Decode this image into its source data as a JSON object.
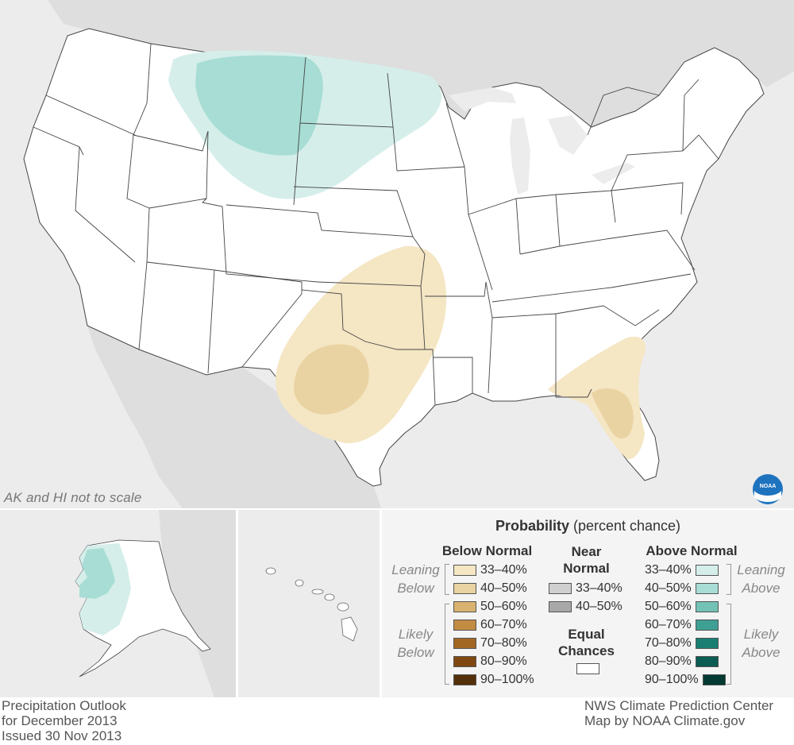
{
  "map": {
    "scale_note": "AK and HI not to scale",
    "colors": {
      "ocean": "#ececec",
      "neighbor_land": "#dedede",
      "conus_land": "#ffffff",
      "border": "#444444",
      "below_33_40": "#f5e6c4",
      "below_40_50": "#ead3a2",
      "above_33_40": "#d5eeea",
      "above_40_50": "#a7ddd4"
    }
  },
  "legend": {
    "title_bold": "Probability",
    "title_rest": " (percent chance)",
    "below_header": "Below Normal",
    "near_header": "Near Normal",
    "above_header": "Above Normal",
    "leaning_below": "Leaning Below",
    "likely_below": "Likely Below",
    "leaning_above": "Leaning Above",
    "likely_above": "Likely Above",
    "equal_chances": "Equal Chances",
    "below": [
      {
        "label": "33–40%",
        "color": "#f5e6c4"
      },
      {
        "label": "40–50%",
        "color": "#ead3a2"
      },
      {
        "label": "50–60%",
        "color": "#d9b26f"
      },
      {
        "label": "60–70%",
        "color": "#c38c43"
      },
      {
        "label": "70–80%",
        "color": "#a36724"
      },
      {
        "label": "80–90%",
        "color": "#804811"
      },
      {
        "label": "90–100%",
        "color": "#54300a"
      }
    ],
    "near": [
      {
        "label": "33–40%",
        "color": "#cfcfcf"
      },
      {
        "label": "40–50%",
        "color": "#a8a8a8"
      }
    ],
    "above": [
      {
        "label": "33–40%",
        "color": "#d5eeea"
      },
      {
        "label": "40–50%",
        "color": "#a7ddd4"
      },
      {
        "label": "50–60%",
        "color": "#72c2b5"
      },
      {
        "label": "60–70%",
        "color": "#3ea094"
      },
      {
        "label": "70–80%",
        "color": "#1a7f73"
      },
      {
        "label": "80–90%",
        "color": "#0b5c52"
      },
      {
        "label": "90–100%",
        "color": "#033a33"
      }
    ]
  },
  "logo": {
    "text": "NOAA",
    "color": "#1e73be"
  },
  "footer": {
    "left_line1": "Precipitation Outlook",
    "left_line2": "for December 2013",
    "left_line3": "Issued 30 Nov 2013",
    "right_line1": "NWS Climate Prediction Center",
    "right_line2": "Map by NOAA Climate.gov"
  }
}
